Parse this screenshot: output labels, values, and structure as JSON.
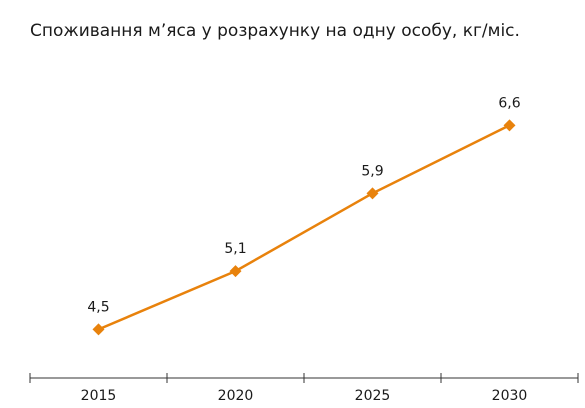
{
  "chart_data": {
    "type": "line",
    "title": "Споживання м’яса у розрахунку на одну особу, кг/міс.",
    "categories": [
      "2015",
      "2020",
      "2025",
      "2030"
    ],
    "series": [
      {
        "name": null,
        "color": "#e8820c",
        "values": [
          4.5,
          5.1,
          5.9,
          6.6
        ],
        "value_labels": [
          "4,5",
          "5,1",
          "5,9",
          "6,6"
        ]
      }
    ],
    "ylim": [
      4.0,
      7.2
    ]
  }
}
